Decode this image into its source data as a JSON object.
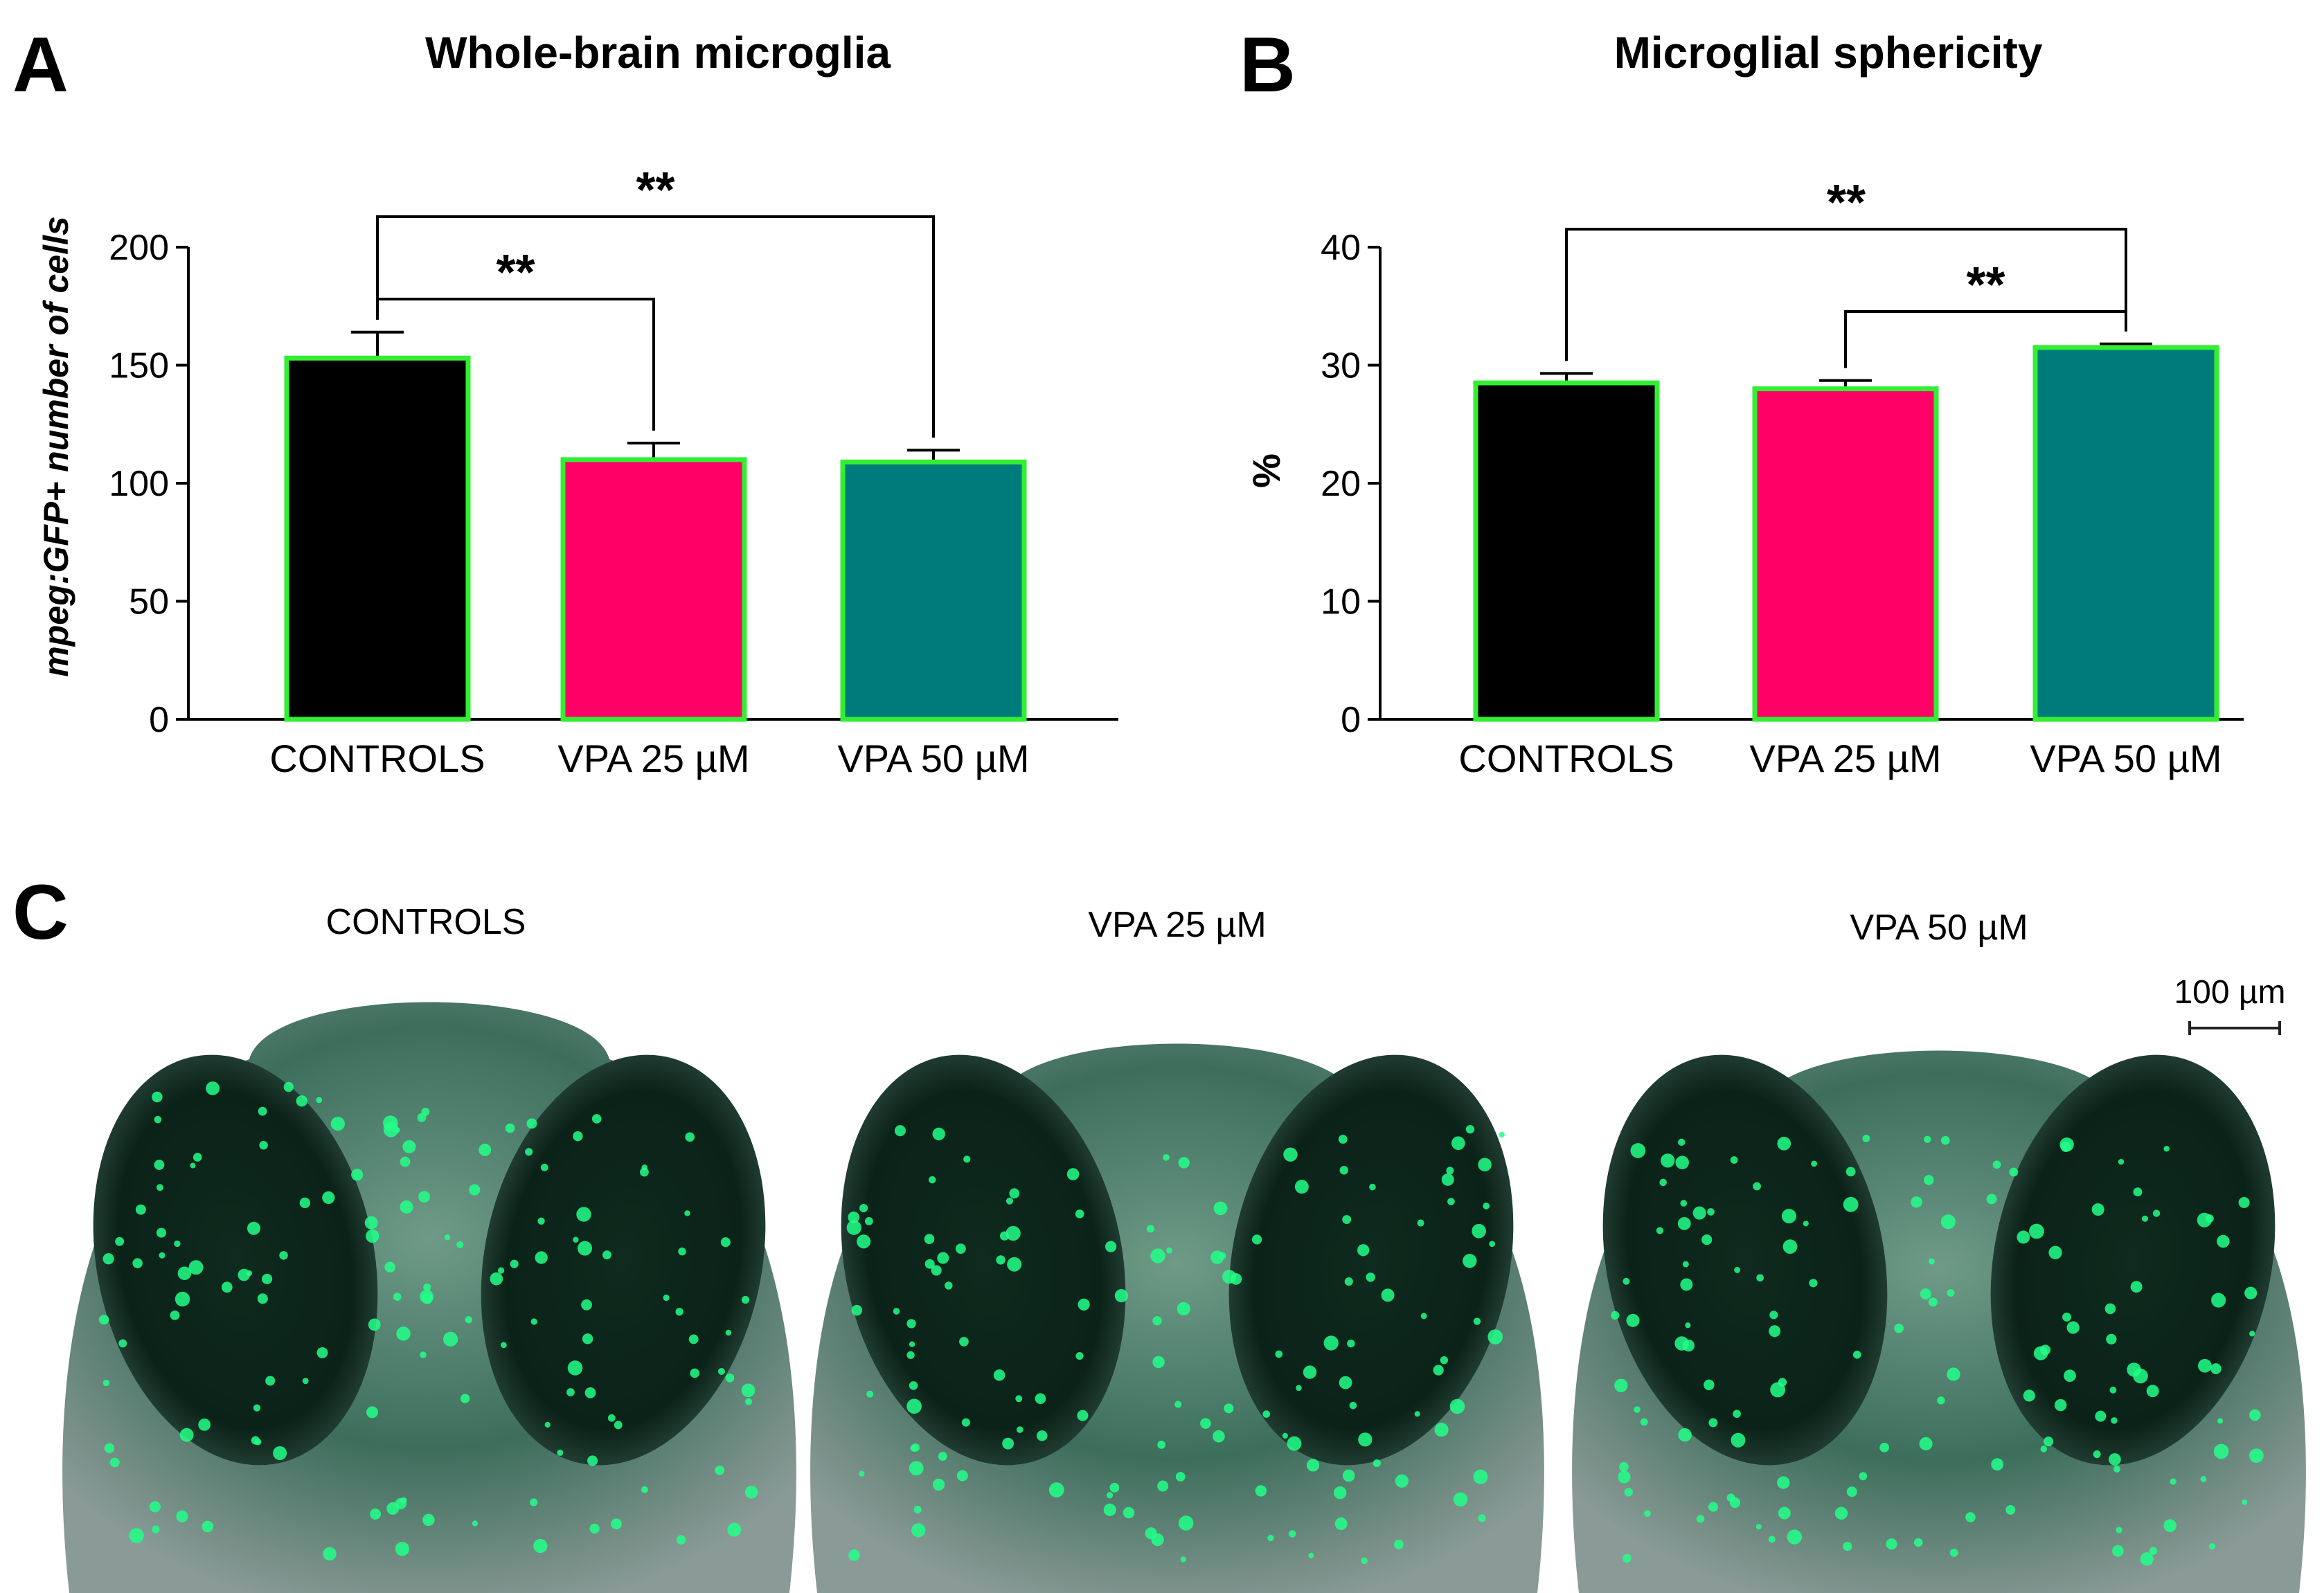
{
  "panels": {
    "a": {
      "letter": "A",
      "title": "Whole-brain microglia"
    },
    "b": {
      "letter": "B",
      "title": "Microglial sphericity"
    },
    "c": {
      "letter": "C",
      "labels": [
        "CONTROLS",
        "VPA 25 µM",
        "VPA 50 µM"
      ],
      "scale_bar": "100 µm"
    }
  },
  "colors": {
    "controls": "#000000",
    "vpa25": "#ff0066",
    "vpa50": "#007b7b",
    "bar_outline": "#33ee33",
    "tissue_green": "#22ff88"
  },
  "chart_data": [
    {
      "type": "bar",
      "title": "Whole-brain microglia",
      "xlabel": "",
      "ylabel": "mpeg:GFP+ number of cells",
      "categories": [
        "CONTROLS",
        "VPA 25 µM",
        "VPA 50 µM"
      ],
      "values": [
        153,
        110,
        109
      ],
      "errors": [
        11,
        7,
        5
      ],
      "ylim": [
        0,
        200
      ],
      "yticks": [
        0,
        50,
        100,
        150,
        200
      ],
      "significance": [
        {
          "from": 0,
          "to": 1,
          "label": "**"
        },
        {
          "from": 0,
          "to": 2,
          "label": "**"
        }
      ]
    },
    {
      "type": "bar",
      "title": "Microglial sphericity",
      "xlabel": "",
      "ylabel": "%",
      "categories": [
        "CONTROLS",
        "VPA 25 µM",
        "VPA 50 µM"
      ],
      "values": [
        28.5,
        28.0,
        31.5
      ],
      "errors": [
        0.8,
        0.7,
        0.3
      ],
      "ylim": [
        0,
        40
      ],
      "yticks": [
        0,
        10,
        20,
        30,
        40
      ],
      "significance": [
        {
          "from": 1,
          "to": 2,
          "label": "**"
        },
        {
          "from": 0,
          "to": 2,
          "label": "**"
        }
      ]
    }
  ]
}
